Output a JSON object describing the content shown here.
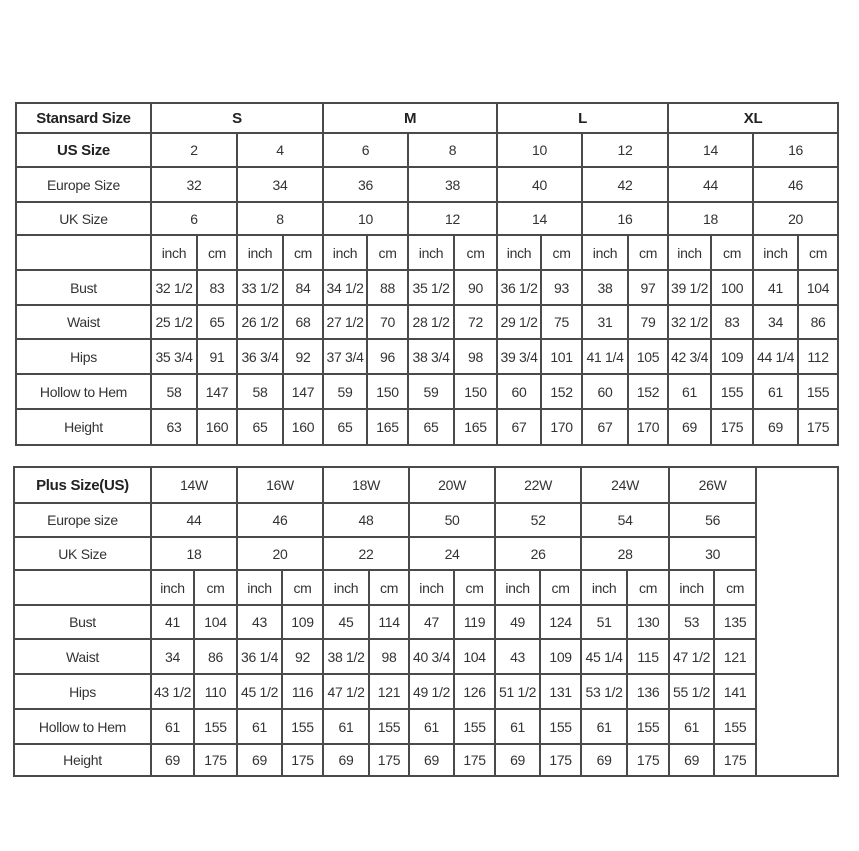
{
  "standard": {
    "header_label": "Stansard Size",
    "groups": [
      "S",
      "M",
      "L",
      "XL"
    ],
    "size_rows": [
      {
        "label": "US Size",
        "bold": true,
        "values": [
          "2",
          "4",
          "6",
          "8",
          "10",
          "12",
          "14",
          "16"
        ]
      },
      {
        "label": "Europe Size",
        "values": [
          "32",
          "34",
          "36",
          "38",
          "40",
          "42",
          "44",
          "46"
        ]
      },
      {
        "label": "UK Size",
        "values": [
          "6",
          "8",
          "10",
          "12",
          "14",
          "16",
          "18",
          "20"
        ]
      }
    ],
    "units": [
      "inch",
      "cm",
      "inch",
      "cm",
      "inch",
      "cm",
      "inch",
      "cm",
      "inch",
      "cm",
      "inch",
      "cm",
      "inch",
      "cm",
      "inch",
      "cm"
    ],
    "measurements": [
      {
        "label": "Bust",
        "values": [
          "32 1/2",
          "83",
          "33 1/2",
          "84",
          "34 1/2",
          "88",
          "35 1/2",
          "90",
          "36 1/2",
          "93",
          "38",
          "97",
          "39 1/2",
          "100",
          "41",
          "104"
        ]
      },
      {
        "label": "Waist",
        "values": [
          "25 1/2",
          "65",
          "26 1/2",
          "68",
          "27 1/2",
          "70",
          "28 1/2",
          "72",
          "29 1/2",
          "75",
          "31",
          "79",
          "32 1/2",
          "83",
          "34",
          "86"
        ]
      },
      {
        "label": "Hips",
        "values": [
          "35 3/4",
          "91",
          "36 3/4",
          "92",
          "37 3/4",
          "96",
          "38 3/4",
          "98",
          "39 3/4",
          "101",
          "41 1/4",
          "105",
          "42 3/4",
          "109",
          "44 1/4",
          "112"
        ]
      },
      {
        "label": "Hollow to Hem",
        "values": [
          "58",
          "147",
          "58",
          "147",
          "59",
          "150",
          "59",
          "150",
          "60",
          "152",
          "60",
          "152",
          "61",
          "155",
          "61",
          "155"
        ]
      },
      {
        "label": "Height",
        "values": [
          "63",
          "160",
          "65",
          "160",
          "65",
          "165",
          "65",
          "165",
          "67",
          "170",
          "67",
          "170",
          "69",
          "175",
          "69",
          "175"
        ]
      }
    ]
  },
  "plus": {
    "header_label": "Plus Size(US)",
    "sizes": [
      "14W",
      "16W",
      "18W",
      "20W",
      "22W",
      "24W",
      "26W"
    ],
    "size_rows": [
      {
        "label": "Europe size",
        "values": [
          "44",
          "46",
          "48",
          "50",
          "52",
          "54",
          "56"
        ]
      },
      {
        "label": "UK Size",
        "values": [
          "18",
          "20",
          "22",
          "24",
          "26",
          "28",
          "30"
        ]
      }
    ],
    "units": [
      "inch",
      "cm",
      "inch",
      "cm",
      "inch",
      "cm",
      "inch",
      "cm",
      "inch",
      "cm",
      "inch",
      "cm",
      "inch",
      "cm"
    ],
    "measurements": [
      {
        "label": "Bust",
        "values": [
          "41",
          "104",
          "43",
          "109",
          "45",
          "114",
          "47",
          "119",
          "49",
          "124",
          "51",
          "130",
          "53",
          "135"
        ]
      },
      {
        "label": "Waist",
        "values": [
          "34",
          "86",
          "36 1/4",
          "92",
          "38 1/2",
          "98",
          "40 3/4",
          "104",
          "43",
          "109",
          "45 1/4",
          "115",
          "47 1/2",
          "121"
        ]
      },
      {
        "label": "Hips",
        "values": [
          "43 1/2",
          "110",
          "45 1/2",
          "116",
          "47 1/2",
          "121",
          "49 1/2",
          "126",
          "51 1/2",
          "131",
          "53 1/2",
          "136",
          "55 1/2",
          "141"
        ]
      },
      {
        "label": "Hollow to Hem",
        "values": [
          "61",
          "155",
          "61",
          "155",
          "61",
          "155",
          "61",
          "155",
          "61",
          "155",
          "61",
          "155",
          "61",
          "155"
        ]
      },
      {
        "label": "Height",
        "values": [
          "69",
          "175",
          "69",
          "175",
          "69",
          "175",
          "69",
          "175",
          "69",
          "175",
          "69",
          "175",
          "69",
          "175"
        ]
      }
    ]
  }
}
